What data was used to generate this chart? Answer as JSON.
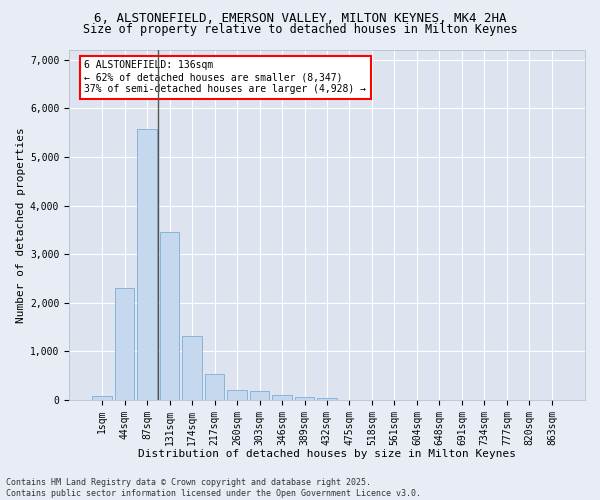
{
  "title_line1": "6, ALSTONEFIELD, EMERSON VALLEY, MILTON KEYNES, MK4 2HA",
  "title_line2": "Size of property relative to detached houses in Milton Keynes",
  "xlabel": "Distribution of detached houses by size in Milton Keynes",
  "ylabel": "Number of detached properties",
  "categories": [
    "1sqm",
    "44sqm",
    "87sqm",
    "131sqm",
    "174sqm",
    "217sqm",
    "260sqm",
    "303sqm",
    "346sqm",
    "389sqm",
    "432sqm",
    "475sqm",
    "518sqm",
    "561sqm",
    "604sqm",
    "648sqm",
    "691sqm",
    "734sqm",
    "777sqm",
    "820sqm",
    "863sqm"
  ],
  "values": [
    80,
    2300,
    5580,
    3450,
    1320,
    530,
    210,
    190,
    95,
    60,
    35,
    5,
    5,
    0,
    0,
    0,
    0,
    0,
    0,
    0,
    0
  ],
  "bar_color": "#c5d8ee",
  "bar_edge_color": "#7bafd4",
  "vline_color": "#555555",
  "annotation_text": "6 ALSTONEFIELD: 136sqm\n← 62% of detached houses are smaller (8,347)\n37% of semi-detached houses are larger (4,928) →",
  "annotation_fontsize": 7,
  "annotation_box_color": "white",
  "annotation_box_edge": "red",
  "ylim": [
    0,
    7200
  ],
  "yticks": [
    0,
    1000,
    2000,
    3000,
    4000,
    5000,
    6000,
    7000
  ],
  "bg_color": "#e8edf5",
  "plot_bg_color": "#dde4f0",
  "footer_line1": "Contains HM Land Registry data © Crown copyright and database right 2025.",
  "footer_line2": "Contains public sector information licensed under the Open Government Licence v3.0.",
  "title_fontsize": 9,
  "subtitle_fontsize": 8.5,
  "axis_label_fontsize": 8,
  "tick_fontsize": 7,
  "footer_fontsize": 6
}
